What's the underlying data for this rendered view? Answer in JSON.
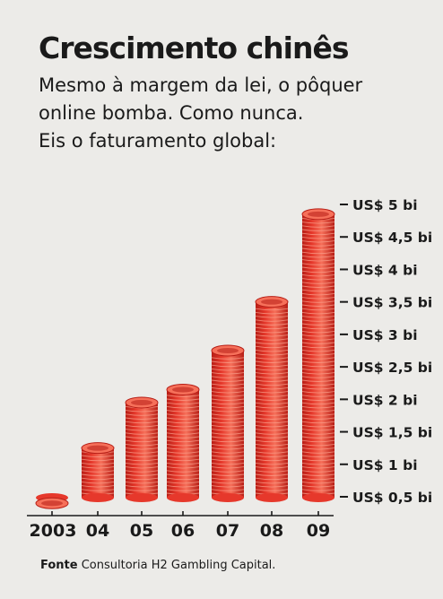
{
  "title": "Crescimento chinês",
  "subtitle_lines": [
    "Mesmo à margem da lei, o pôquer",
    "online bomba. Como nunca.",
    "Eis o faturamento global:"
  ],
  "source": {
    "label": "Fonte",
    "text": "Consultoria H2 Gambling Capital."
  },
  "colors": {
    "coin": "#e6382b",
    "coin_light": "#f6705a",
    "coin_dark": "#b71e16",
    "ink": "#1a1a1a"
  },
  "chart_data": {
    "type": "bar",
    "title": "Crescimento chinês",
    "categories": [
      "2003",
      "04",
      "05",
      "06",
      "07",
      "08",
      "09"
    ],
    "values": [
      0.4,
      1.25,
      1.95,
      2.15,
      2.75,
      3.5,
      4.85
    ],
    "ylabel": "",
    "ylim": [
      0.5,
      5
    ],
    "ytick_values": [
      0.5,
      1,
      1.5,
      2,
      2.5,
      3,
      3.5,
      4,
      4.5,
      5
    ],
    "ytick_labels": [
      "US$ 0,5 bi",
      "US$ 1 bi",
      "US$ 1,5 bi",
      "US$ 2 bi",
      "US$ 2,5 bi",
      "US$ 3 bi",
      "US$ 3,5 bi",
      "US$ 4 bi",
      "US$ 4,5 bi",
      "US$ 5 bi"
    ],
    "axis_side": "right",
    "grid": false,
    "legend": "none"
  }
}
